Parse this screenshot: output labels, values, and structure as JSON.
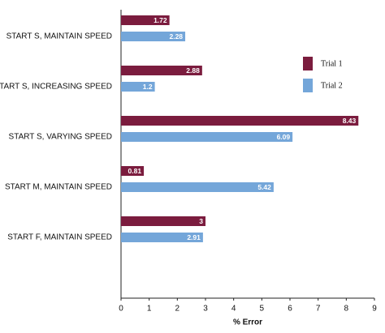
{
  "chart_data": {
    "type": "hbar",
    "categories": [
      "START S, MAINTAIN SPEED",
      "START S, INCREASING SPEED",
      "START S, VARYING SPEED",
      "START M, MAINTAIN SPEED",
      "START F, MAINTAIN SPEED"
    ],
    "series": [
      {
        "name": "Trial 1",
        "color": "#7b1c3e",
        "values": [
          1.72,
          2.88,
          8.43,
          0.81,
          3
        ]
      },
      {
        "name": "Trial 2",
        "color": "#74a6d9",
        "values": [
          2.28,
          1.2,
          6.09,
          5.42,
          2.91
        ]
      }
    ],
    "x_label": "% Error",
    "xlim": [
      0,
      9
    ],
    "xticks": [
      0,
      1,
      2,
      3,
      4,
      5,
      6,
      7,
      8,
      9
    ],
    "grid": false,
    "legend": "upper right"
  }
}
